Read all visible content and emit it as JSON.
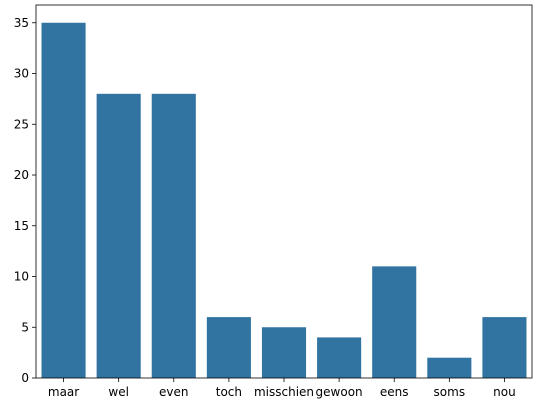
{
  "chart_data": {
    "type": "bar",
    "categories": [
      "maar",
      "wel",
      "even",
      "toch",
      "misschien",
      "gewoon",
      "eens",
      "soms",
      "nou"
    ],
    "values": [
      35,
      28,
      28,
      6,
      5,
      4,
      11,
      2,
      6
    ],
    "title": "",
    "xlabel": "",
    "ylabel": "",
    "ylim": [
      0,
      36.75
    ],
    "yticks": [
      0,
      5,
      10,
      15,
      20,
      25,
      30,
      35
    ],
    "grid": false,
    "legend": "none",
    "colors": {
      "bar": "#3274a1",
      "axis": "#000000",
      "text": "#000000"
    }
  }
}
